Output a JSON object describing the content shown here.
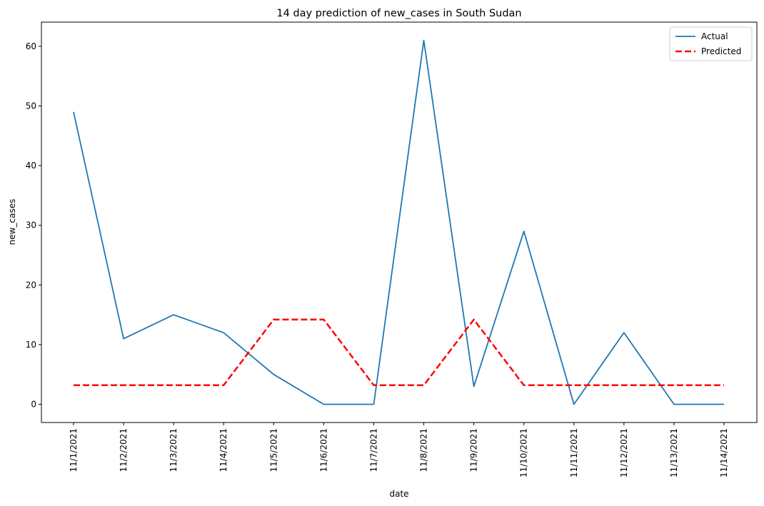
{
  "chart_data": {
    "type": "line",
    "title": "14 day prediction of new_cases in South Sudan",
    "xlabel": "date",
    "ylabel": "new_cases",
    "categories": [
      "11/1/2021",
      "11/2/2021",
      "11/3/2021",
      "11/4/2021",
      "11/5/2021",
      "11/6/2021",
      "11/7/2021",
      "11/8/2021",
      "11/9/2021",
      "11/10/2021",
      "11/11/2021",
      "11/12/2021",
      "11/13/2021",
      "11/14/2021"
    ],
    "ylim": [
      -3.05,
      64.05
    ],
    "yticks": [
      0,
      10,
      20,
      30,
      40,
      50,
      60
    ],
    "grid": false,
    "legend_position": "top-right",
    "series": [
      {
        "name": "Actual",
        "color": "#1f77b4",
        "style": "solid",
        "values": [
          49,
          11,
          15,
          12,
          5,
          0,
          0,
          61,
          3,
          29,
          0,
          12,
          0,
          0
        ]
      },
      {
        "name": "Predicted",
        "color": "#ff0000",
        "style": "dashed",
        "values": [
          3.2,
          3.2,
          3.2,
          3.2,
          14.2,
          14.2,
          3.2,
          3.2,
          14.2,
          3.2,
          3.2,
          3.2,
          3.2,
          3.2
        ]
      }
    ]
  }
}
